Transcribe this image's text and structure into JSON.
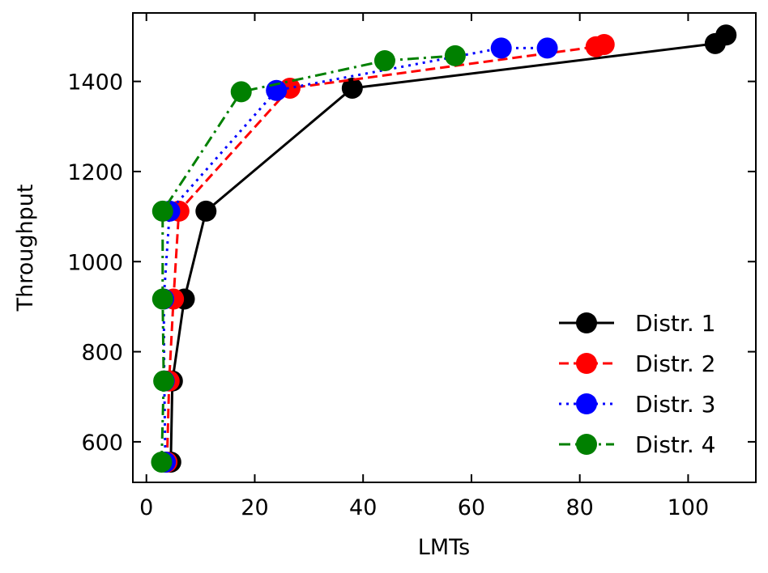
{
  "chart_data": {
    "type": "line",
    "title": "",
    "xlabel": "LMTs",
    "ylabel": "Throughput",
    "xlim": [
      -2.5,
      112.5
    ],
    "ylim": [
      510,
      1552
    ],
    "xticks": [
      0,
      20,
      40,
      60,
      80,
      100
    ],
    "yticks": [
      600,
      800,
      1000,
      1200,
      1400
    ],
    "grid": false,
    "legend_position": "lower-right",
    "series": [
      {
        "name": "Distr. 1",
        "color": "#000000",
        "dash": "solid",
        "x": [
          4.5,
          4.8,
          7.0,
          11.0,
          38.0,
          105.0,
          107.0
        ],
        "y": [
          555,
          735,
          917,
          1112,
          1385,
          1484,
          1503
        ]
      },
      {
        "name": "Distr. 2",
        "color": "#ff0000",
        "dash": "dashed",
        "x": [
          3.8,
          4.2,
          5.0,
          6.0,
          26.5,
          83.0,
          84.5
        ],
        "y": [
          555,
          735,
          917,
          1112,
          1385,
          1477,
          1482
        ]
      },
      {
        "name": "Distr. 3",
        "color": "#0000ff",
        "dash": "dotted",
        "x": [
          3.5,
          3.3,
          3.2,
          4.3,
          24.0,
          65.5,
          74.0
        ],
        "y": [
          555,
          735,
          917,
          1112,
          1380,
          1474,
          1474
        ]
      },
      {
        "name": "Distr. 4",
        "color": "#008000",
        "dash": "dashdot",
        "x": [
          2.8,
          3.2,
          3.0,
          3.0,
          17.5,
          44.0,
          57.0
        ],
        "y": [
          555,
          735,
          917,
          1112,
          1377,
          1446,
          1457
        ]
      }
    ]
  }
}
